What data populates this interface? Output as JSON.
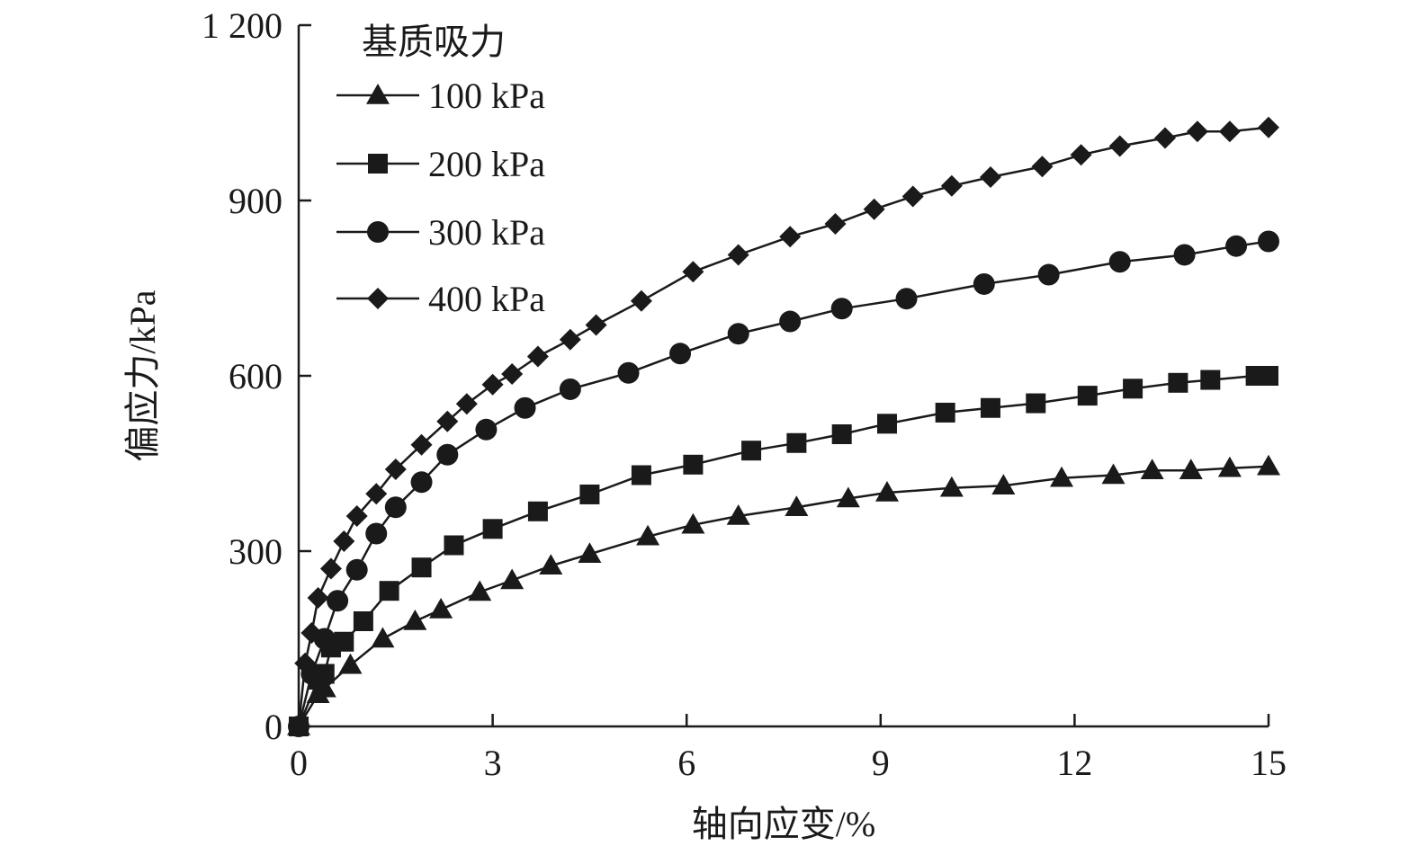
{
  "chart_data": {
    "type": "line",
    "xlabel": "轴向应变/%",
    "ylabel": "偏应力/kPa",
    "xlim": [
      0,
      15
    ],
    "ylim": [
      0,
      1200
    ],
    "xticks": [
      0,
      3,
      6,
      9,
      12,
      15
    ],
    "yticks": [
      0,
      300,
      600,
      900,
      1200
    ],
    "xtick_labels": [
      "0",
      "3",
      "6",
      "9",
      "12",
      "15"
    ],
    "ytick_labels": [
      "0",
      "300",
      "600",
      "900",
      "1 200"
    ],
    "grid": false,
    "legend": {
      "title": "基质吸力",
      "placement": "top-left"
    },
    "series": [
      {
        "name": "100 kPa",
        "marker": "triangle",
        "points": [
          [
            0,
            0
          ],
          [
            0.3,
            55
          ],
          [
            0.4,
            65
          ],
          [
            0.8,
            105
          ],
          [
            1.3,
            150
          ],
          [
            1.8,
            180
          ],
          [
            2.2,
            200
          ],
          [
            2.8,
            230
          ],
          [
            3.3,
            250
          ],
          [
            3.9,
            275
          ],
          [
            4.5,
            295
          ],
          [
            5.4,
            325
          ],
          [
            6.1,
            345
          ],
          [
            6.8,
            360
          ],
          [
            7.7,
            375
          ],
          [
            8.5,
            390
          ],
          [
            9.1,
            400
          ],
          [
            10.1,
            408
          ],
          [
            10.9,
            412
          ],
          [
            11.8,
            425
          ],
          [
            12.6,
            430
          ],
          [
            13.2,
            438
          ],
          [
            13.8,
            438
          ],
          [
            14.4,
            442
          ],
          [
            15,
            445
          ]
        ]
      },
      {
        "name": "200 kPa",
        "marker": "square",
        "points": [
          [
            0,
            0
          ],
          [
            0.3,
            80
          ],
          [
            0.4,
            90
          ],
          [
            0.5,
            135
          ],
          [
            0.7,
            145
          ],
          [
            1.0,
            180
          ],
          [
            1.4,
            232
          ],
          [
            1.9,
            272
          ],
          [
            2.4,
            310
          ],
          [
            3.0,
            338
          ],
          [
            3.7,
            368
          ],
          [
            4.5,
            397
          ],
          [
            5.3,
            430
          ],
          [
            6.1,
            448
          ],
          [
            7.0,
            472
          ],
          [
            7.7,
            485
          ],
          [
            8.4,
            500
          ],
          [
            9.1,
            518
          ],
          [
            10.0,
            537
          ],
          [
            10.7,
            545
          ],
          [
            11.4,
            553
          ],
          [
            12.2,
            566
          ],
          [
            12.9,
            578
          ],
          [
            13.6,
            588
          ],
          [
            14.1,
            593
          ],
          [
            14.8,
            600
          ],
          [
            15,
            600
          ]
        ]
      },
      {
        "name": "300 kPa",
        "marker": "circle",
        "points": [
          [
            0,
            0
          ],
          [
            0.2,
            90
          ],
          [
            0.4,
            150
          ],
          [
            0.6,
            215
          ],
          [
            0.9,
            268
          ],
          [
            1.2,
            330
          ],
          [
            1.5,
            375
          ],
          [
            1.9,
            418
          ],
          [
            2.3,
            465
          ],
          [
            2.9,
            508
          ],
          [
            3.5,
            545
          ],
          [
            4.2,
            577
          ],
          [
            5.1,
            605
          ],
          [
            5.9,
            638
          ],
          [
            6.8,
            672
          ],
          [
            7.6,
            693
          ],
          [
            8.4,
            715
          ],
          [
            9.4,
            732
          ],
          [
            10.6,
            757
          ],
          [
            11.6,
            773
          ],
          [
            12.7,
            795
          ],
          [
            13.7,
            807
          ],
          [
            14.5,
            822
          ],
          [
            15,
            830
          ]
        ]
      },
      {
        "name": "400 kPa",
        "marker": "diamond",
        "points": [
          [
            0,
            0
          ],
          [
            0.1,
            108
          ],
          [
            0.2,
            160
          ],
          [
            0.3,
            220
          ],
          [
            0.5,
            270
          ],
          [
            0.7,
            317
          ],
          [
            0.9,
            360
          ],
          [
            1.2,
            398
          ],
          [
            1.5,
            440
          ],
          [
            1.9,
            482
          ],
          [
            2.3,
            522
          ],
          [
            2.6,
            552
          ],
          [
            3.0,
            585
          ],
          [
            3.3,
            603
          ],
          [
            3.7,
            633
          ],
          [
            4.2,
            662
          ],
          [
            4.6,
            687
          ],
          [
            5.3,
            728
          ],
          [
            6.1,
            778
          ],
          [
            6.8,
            807
          ],
          [
            7.6,
            838
          ],
          [
            8.3,
            860
          ],
          [
            8.9,
            885
          ],
          [
            9.5,
            907
          ],
          [
            10.1,
            925
          ],
          [
            10.7,
            940
          ],
          [
            11.5,
            958
          ],
          [
            12.1,
            978
          ],
          [
            12.7,
            993
          ],
          [
            13.4,
            1007
          ],
          [
            13.9,
            1018
          ],
          [
            14.4,
            1018
          ],
          [
            15,
            1025
          ]
        ]
      }
    ]
  }
}
